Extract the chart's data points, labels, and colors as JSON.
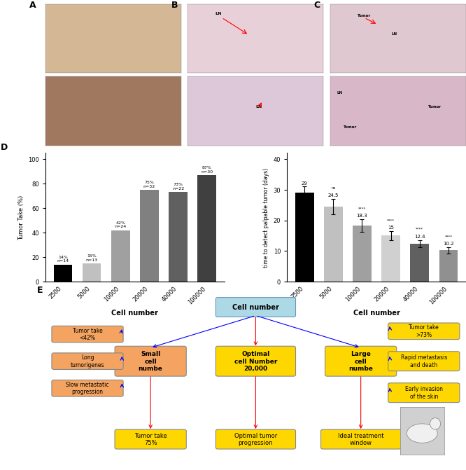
{
  "bar1_categories": [
    "2500",
    "5000",
    "10000",
    "20000",
    "40000",
    "100000"
  ],
  "bar1_values": [
    14,
    15,
    42,
    75,
    73,
    87
  ],
  "bar1_labels": [
    "14%\nn=14",
    "15%\nn=13",
    "42%\nn=24",
    "75%\nn=32",
    "73%\nn=22",
    "87%\nn=30"
  ],
  "bar1_colors": [
    "#000000",
    "#c0c0c0",
    "#a0a0a0",
    "#808080",
    "#606060",
    "#404040"
  ],
  "bar1_ylabel": "Tumor Take (%)",
  "bar1_xlabel": "Cell number",
  "bar1_ylim": [
    0,
    105
  ],
  "bar2_categories": [
    "2500",
    "5000",
    "10000",
    "20000",
    "40000",
    "100000"
  ],
  "bar2_values": [
    29,
    24.5,
    18.3,
    15,
    12.4,
    10.2
  ],
  "bar2_errors": [
    2.0,
    2.5,
    2.0,
    1.5,
    1.2,
    1.0
  ],
  "bar2_sig": [
    "",
    "ns",
    "****",
    "****",
    "****",
    "****"
  ],
  "bar2_colors": [
    "#000000",
    "#c0c0c0",
    "#a0a0a0",
    "#d0d0d0",
    "#606060",
    "#909090"
  ],
  "bar2_ylabel": "time to detect palpable tumor (days)",
  "bar2_xlabel": "Cell number",
  "bar2_ylim": [
    0,
    42
  ],
  "panel_labels": [
    "A",
    "B",
    "C",
    "D",
    "E"
  ],
  "box_small_text": "Small\ncell\nnumbe",
  "box_optimal_text": "Optimal\ncell Number\n20,000",
  "box_large_text": "Large\ncell\nnumbe",
  "box_cellnum_text": "Cell number",
  "left_boxes": [
    "Tumor take\n<42%",
    "Long\ntumorigenes",
    "Slow metastatic\nprogression"
  ],
  "right_boxes": [
    "Tumor take\n>73%",
    "Rapid metastasis\nand death",
    "Early invasion\nof the skin"
  ],
  "bottom_boxes": [
    "Tumor take\n75%",
    "Optimal tumor\nprogression",
    "Ideal treatment\nwindow"
  ],
  "salmon_color": "#F4A460",
  "yellow_color": "#FFD700",
  "lightblue_color": "#ADD8E6",
  "background": "#ffffff"
}
